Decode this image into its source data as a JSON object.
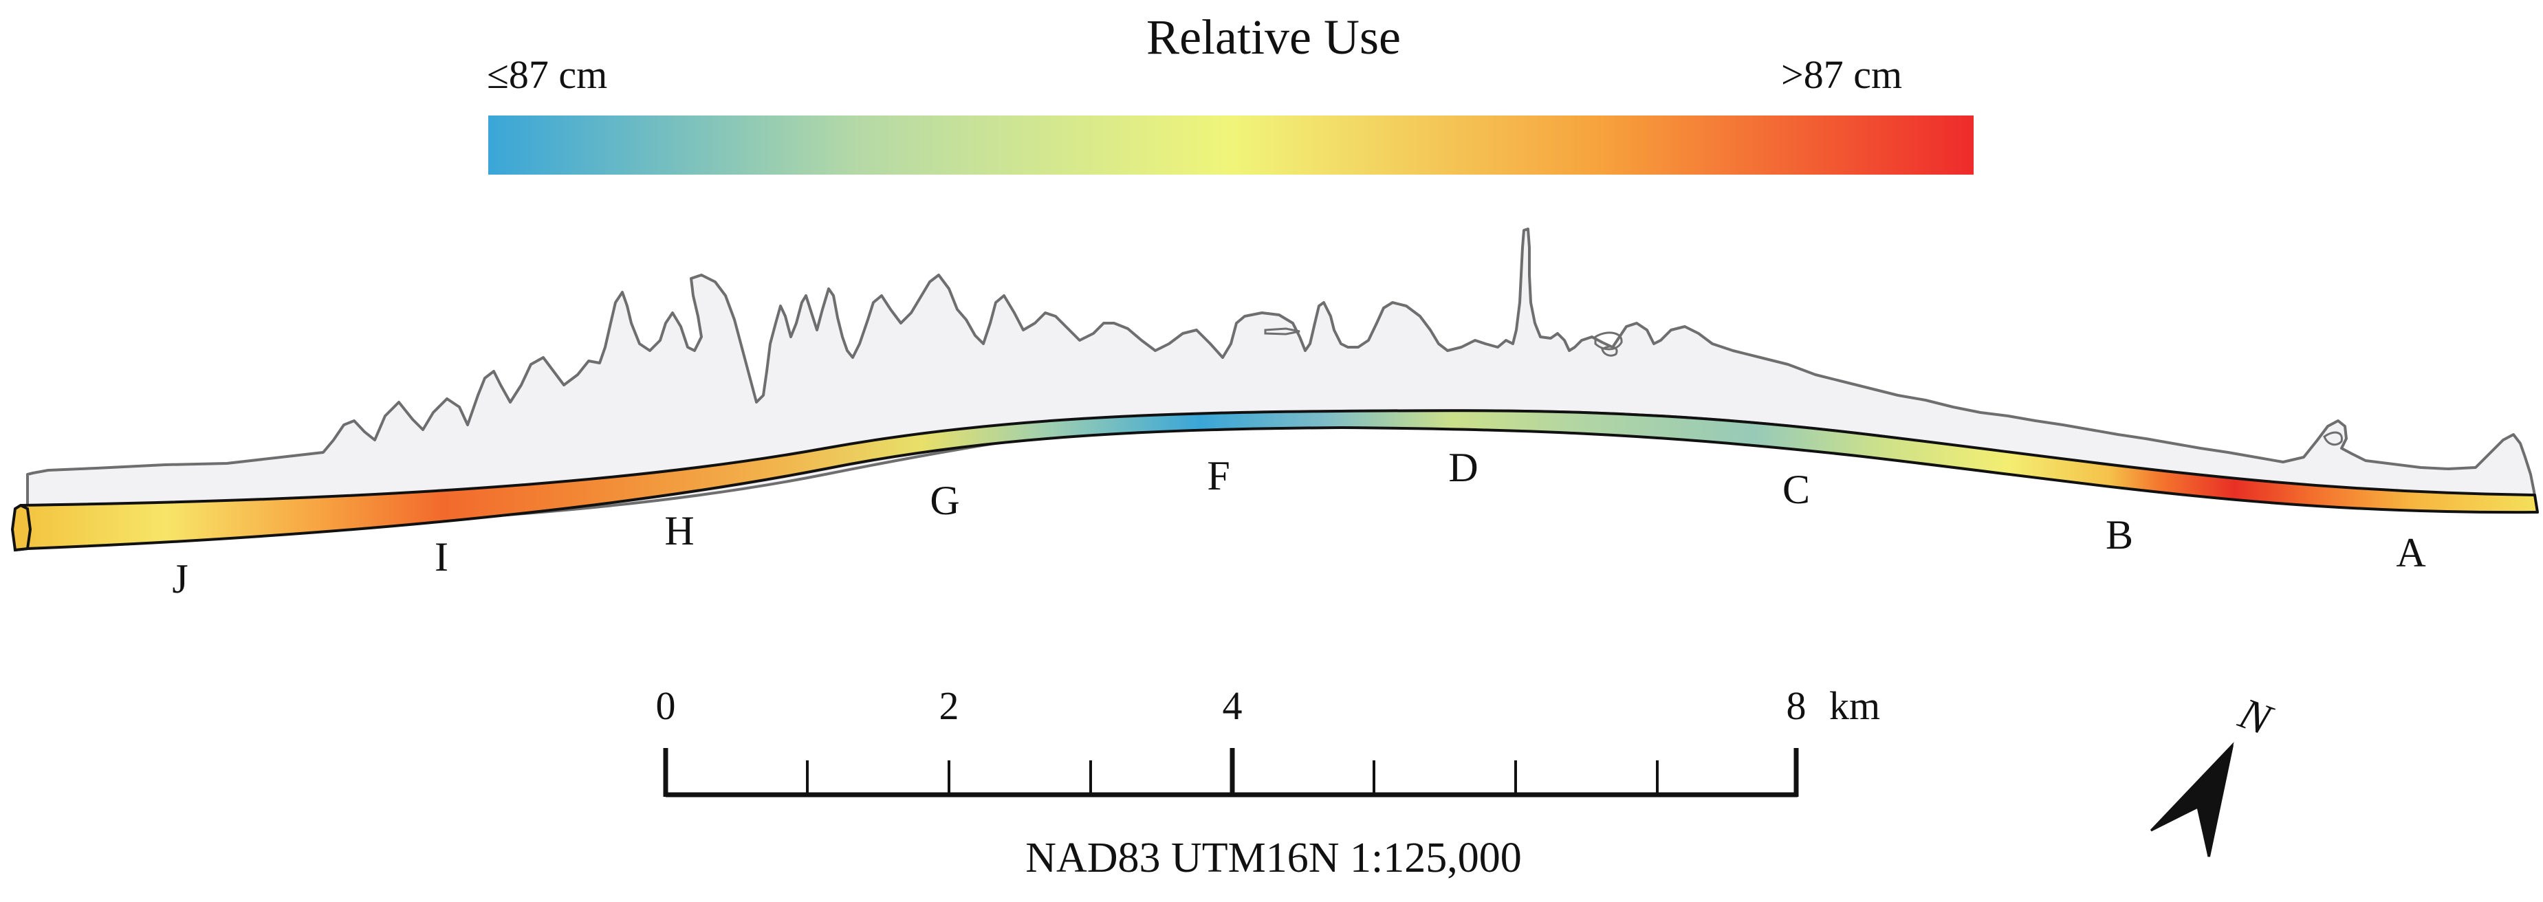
{
  "legend": {
    "title": "Relative Use",
    "low_label": "≤87 cm",
    "high_label": ">87 cm",
    "colors": [
      "#3aa6d8",
      "#b5d9a6",
      "#f0f57a",
      "#f7a23c",
      "#ee2b2b"
    ]
  },
  "site_labels": [
    {
      "id": "J",
      "text": "J"
    },
    {
      "id": "I",
      "text": "I"
    },
    {
      "id": "H",
      "text": "H"
    },
    {
      "id": "G",
      "text": "G"
    },
    {
      "id": "F",
      "text": "F"
    },
    {
      "id": "D",
      "text": "D"
    },
    {
      "id": "C",
      "text": "C"
    },
    {
      "id": "B",
      "text": "B"
    },
    {
      "id": "A",
      "text": "A"
    }
  ],
  "scale_bar": {
    "ticks": [
      "0",
      "2",
      "4",
      "8"
    ],
    "unit": "km",
    "caption": "NAD83 UTM16N 1:125,000"
  },
  "north_arrow": {
    "label": "N"
  },
  "colors": {
    "land_fill": "#f2f2f4",
    "land_outline": "#6e6e6e",
    "shore_edge": "#111111"
  }
}
